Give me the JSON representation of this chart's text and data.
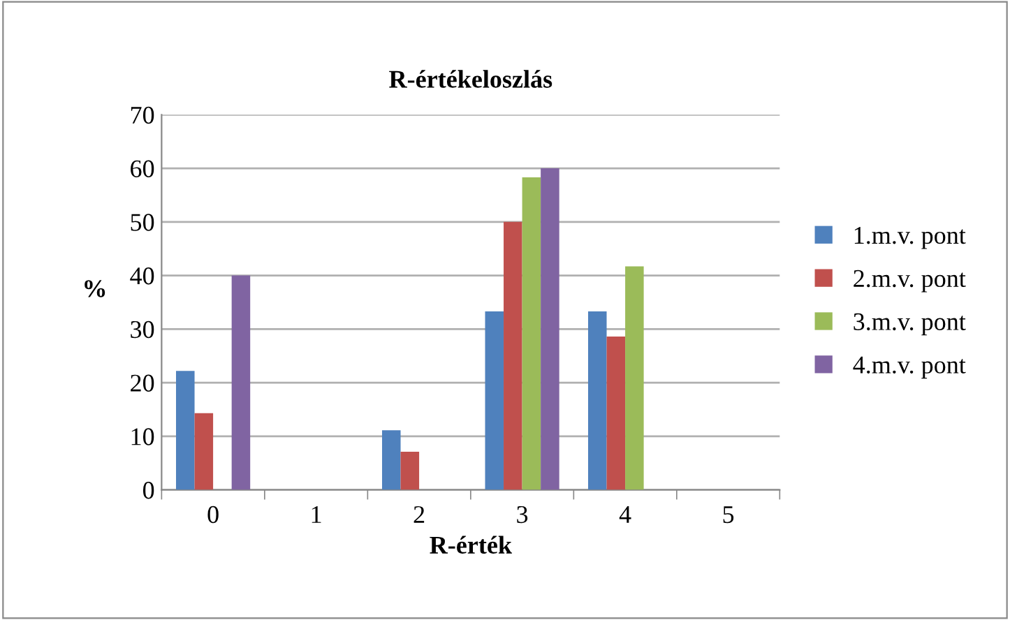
{
  "chart_data": {
    "type": "bar",
    "title": "R-értékeloszlás",
    "xlabel": "R-érték",
    "ylabel": "%",
    "categories": [
      "0",
      "1",
      "2",
      "3",
      "4",
      "5"
    ],
    "series": [
      {
        "name": "1.m.v. pont",
        "color": "#4f81bd",
        "values": [
          22.2,
          0,
          11.1,
          33.3,
          33.3,
          0
        ]
      },
      {
        "name": "2.m.v. pont",
        "color": "#c0504d",
        "values": [
          14.3,
          0,
          7.1,
          50,
          28.6,
          0
        ]
      },
      {
        "name": "3.m.v. pont",
        "color": "#9bbb59",
        "values": [
          0,
          0,
          0,
          58.3,
          41.7,
          0
        ]
      },
      {
        "name": "4.m.v. pont",
        "color": "#8064a2",
        "values": [
          40,
          0,
          0,
          60,
          0,
          0
        ]
      }
    ],
    "ylim": [
      0,
      70
    ],
    "yticks": [
      0,
      10,
      20,
      30,
      40,
      50,
      60,
      70
    ],
    "grid": "y",
    "legend": "right"
  }
}
